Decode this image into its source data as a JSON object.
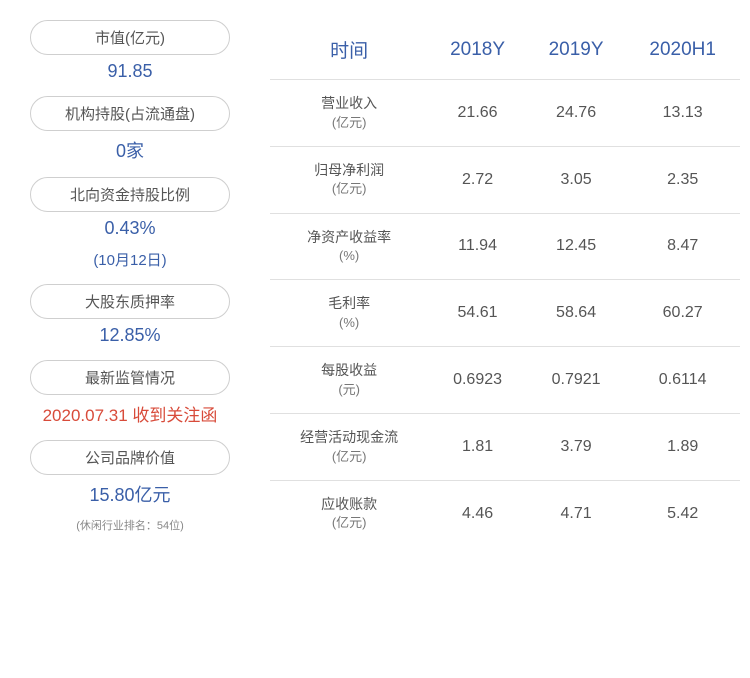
{
  "left": {
    "items": [
      {
        "label": "市值(亿元)",
        "value": "91.85",
        "value_color": "blue"
      },
      {
        "label": "机构持股(占流通盘)",
        "value": "0家",
        "value_color": "blue"
      },
      {
        "label": "北向资金持股比例",
        "value": "0.43%",
        "sub": "(10月12日)",
        "value_color": "blue"
      },
      {
        "label": "大股东质押率",
        "value": "12.85%",
        "value_color": "blue"
      },
      {
        "label": "最新监管情况",
        "value": "2020.07.31 收到关注函",
        "value_color": "red"
      },
      {
        "label": "公司品牌价值",
        "value": "15.80亿元",
        "note": "(休闲行业排名：54位)",
        "value_color": "blue"
      }
    ]
  },
  "table": {
    "headers": [
      "时间",
      "2018Y",
      "2019Y",
      "2020H1"
    ],
    "rows": [
      {
        "metric": "营业收入",
        "unit": "(亿元)",
        "v1": "21.66",
        "v2": "24.76",
        "v3": "13.13"
      },
      {
        "metric": "归母净利润",
        "unit": "(亿元)",
        "v1": "2.72",
        "v2": "3.05",
        "v3": "2.35"
      },
      {
        "metric": "净资产收益率",
        "unit": "(%)",
        "v1": "11.94",
        "v2": "12.45",
        "v3": "8.47"
      },
      {
        "metric": "毛利率",
        "unit": "(%)",
        "v1": "54.61",
        "v2": "58.64",
        "v3": "60.27"
      },
      {
        "metric": "每股收益",
        "unit": "(元)",
        "v1": "0.6923",
        "v2": "0.7921",
        "v3": "0.6114"
      },
      {
        "metric": "经营活动现金流",
        "unit": "(亿元)",
        "v1": "1.81",
        "v2": "3.79",
        "v3": "1.89"
      },
      {
        "metric": "应收账款",
        "unit": "(亿元)",
        "v1": "4.46",
        "v2": "4.71",
        "v3": "5.42"
      }
    ]
  },
  "colors": {
    "header_text": "#3a5fa8",
    "value_blue": "#3a5fa8",
    "value_red": "#d84b3a",
    "border": "#e0e0e0",
    "pill_border": "#cfcfcf"
  }
}
